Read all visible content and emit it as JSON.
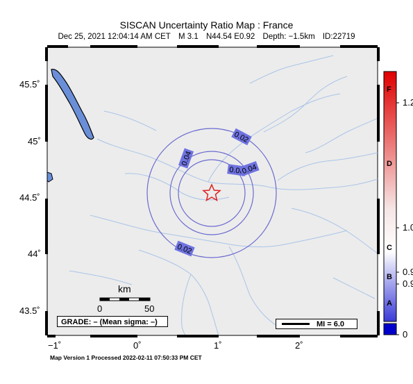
{
  "title": "SISCAN Uncertainty Ratio Map : France",
  "subtitle": {
    "datetime": "Dec 25, 2021 12:04:14 AM CET",
    "magnitude": "M 3.1",
    "location": "N44.54 E0.92",
    "depth": "Depth: −1.5km",
    "event_id": "ID:22719"
  },
  "axes": {
    "lat_labels": [
      "45.5˚",
      "45˚",
      "44.5˚",
      "44˚",
      "43.5˚"
    ],
    "lon_labels": [
      "−1˚",
      "0˚",
      "1˚",
      "2˚"
    ]
  },
  "contours": {
    "labels": [
      "0.02",
      "0.04",
      "0.06",
      "0.04",
      "0.02"
    ]
  },
  "epicenter": {
    "lat": 44.54,
    "lon": 0.92,
    "symbol": "star-icon",
    "color": "#e02020"
  },
  "scale_bar": {
    "title": "km",
    "start_label": "0",
    "end_label": "50"
  },
  "grade_box": "GRADE: – (Mean sigma: –)",
  "legend": {
    "mi_label": "MI = 6.0"
  },
  "colorbar": {
    "value_labels": [
      "1.2",
      "1.0",
      "0.9",
      "0.9",
      "0"
    ],
    "grade_labels": [
      "F",
      "D",
      "C",
      "B",
      "A"
    ],
    "top_color": "#e00000",
    "mid_color": "#ffffff",
    "bottom_color": "#3333dd",
    "min_color": "#0000cc"
  },
  "footer": "Map Version 1 Processed 2022-02-11 07:50:33 PM CET",
  "colors": {
    "land": "#ececec",
    "water": "#6a8fd8",
    "rivers": "#a9c4e8",
    "contour_line": "#6a6ad0",
    "contour_label_bg": "#6f73e0"
  }
}
